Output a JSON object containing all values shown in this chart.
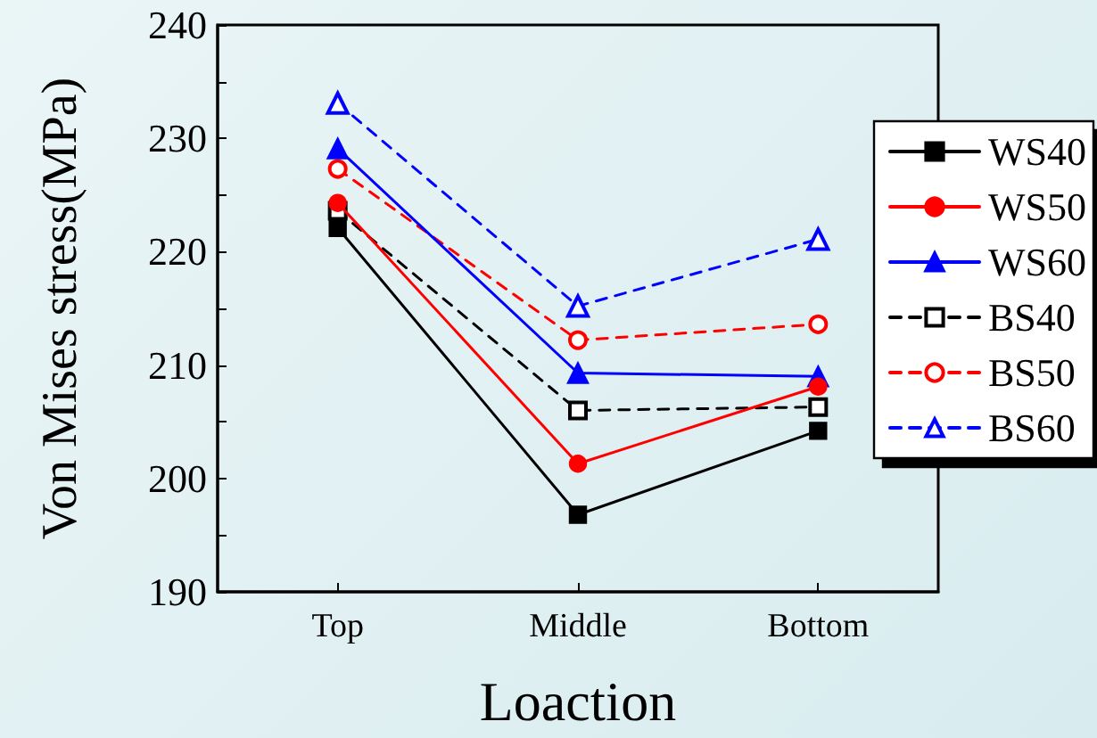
{
  "chart_data": {
    "type": "line",
    "xlabel": "Loaction",
    "ylabel": "Von Mises stress(MPa)",
    "categories": [
      "Top",
      "Middle",
      "Bottom"
    ],
    "series": [
      {
        "name": "WS40",
        "color": "#000000",
        "marker": "square",
        "line_style": "solid",
        "values": [
          222.1,
          196.8,
          204.2
        ]
      },
      {
        "name": "WS50",
        "color": "#ff0000",
        "marker": "circle",
        "line_style": "solid",
        "values": [
          224.3,
          201.3,
          208.1
        ]
      },
      {
        "name": "WS60",
        "color": "#0000ff",
        "marker": "triangle",
        "line_style": "solid",
        "values": [
          229.1,
          209.3,
          209.0
        ]
      },
      {
        "name": "BS40",
        "color": "#000000",
        "marker": "square",
        "line_style": "dashed",
        "values": [
          223.6,
          206.0,
          206.3
        ]
      },
      {
        "name": "BS50",
        "color": "#ff0000",
        "marker": "circle",
        "line_style": "dashed",
        "values": [
          227.3,
          212.2,
          213.6
        ]
      },
      {
        "name": "BS60",
        "color": "#0000ff",
        "marker": "triangle",
        "line_style": "dashed",
        "values": [
          233.1,
          215.2,
          221.1
        ]
      }
    ],
    "ylim": [
      190,
      240
    ],
    "yticks": [
      190,
      {
        "value": 195,
        "label": null
      },
      200,
      {
        "value": 205,
        "label": null
      },
      210,
      {
        "value": 215,
        "label": null
      },
      220,
      {
        "value": 225,
        "label": null
      },
      230,
      {
        "value": 235,
        "label": null
      },
      240
    ],
    "grid": false,
    "legend": "right"
  }
}
